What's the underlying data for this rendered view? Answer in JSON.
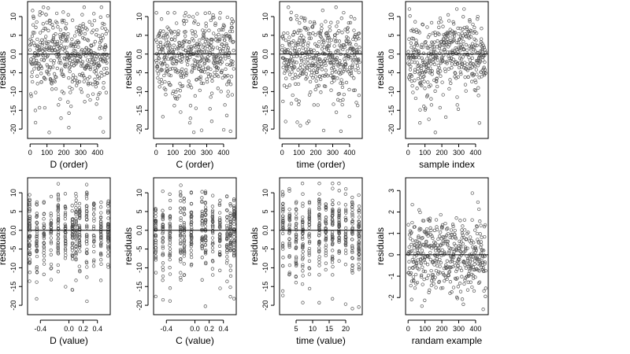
{
  "figure": {
    "title": "",
    "colors": {
      "points": "#555555",
      "axes": "#000000",
      "reference_line": "#000000"
    }
  },
  "chart_data": [
    {
      "id": "d-order",
      "type": "scatter",
      "xlabel": "D (order)",
      "ylabel": "residuals",
      "xlim": [
        -15,
        475
      ],
      "ylim": [
        -22.5,
        14
      ],
      "xticks": [
        0,
        100,
        200,
        300,
        400
      ],
      "xtick_labels": [
        "0",
        "100",
        "200",
        "300",
        "400"
      ],
      "yticks": [
        -20,
        -15,
        -10,
        -5,
        0,
        5,
        10
      ],
      "ytick_labels": [
        "-20",
        "-15",
        "-10",
        "-5",
        "0.0",
        "5",
        "10"
      ],
      "hline": 0,
      "grid": false,
      "legend": "none",
      "points_summary": {
        "n": 460,
        "x_range": [
          0,
          460
        ],
        "y_typical_range": [
          -10,
          10
        ],
        "y_min_approx": -21,
        "y_max_approx": 12.5,
        "pattern": "uniform"
      }
    },
    {
      "id": "c-order",
      "type": "scatter",
      "xlabel": "C (order)",
      "ylabel": "residuals",
      "xlim": [
        -15,
        475
      ],
      "ylim": [
        -22.5,
        14
      ],
      "xticks": [
        0,
        100,
        200,
        300,
        400
      ],
      "xtick_labels": [
        "0",
        "100",
        "200",
        "300",
        "400"
      ],
      "yticks": [
        -20,
        -15,
        -10,
        -5,
        0,
        5,
        10
      ],
      "ytick_labels": [
        "-20",
        "-15",
        "-10",
        "-5",
        "0.0",
        "5",
        "10"
      ],
      "hline": 0,
      "grid": false,
      "legend": "none",
      "points_summary": {
        "n": 460,
        "x_range": [
          0,
          460
        ],
        "y_typical_range": [
          -10,
          10
        ],
        "y_min_approx": -21,
        "y_max_approx": 11,
        "pattern": "uniform"
      }
    },
    {
      "id": "time-order",
      "type": "scatter",
      "xlabel": "time (order)",
      "ylabel": "residuals",
      "xlim": [
        -15,
        475
      ],
      "ylim": [
        -22.5,
        14
      ],
      "xticks": [
        0,
        100,
        200,
        300,
        400
      ],
      "xtick_labels": [
        "0",
        "100",
        "200",
        "300",
        "400"
      ],
      "yticks": [
        -20,
        -15,
        -10,
        -5,
        0,
        5,
        10
      ],
      "ytick_labels": [
        "-20",
        "-15",
        "-10",
        "-5",
        "0.0",
        "5",
        "10"
      ],
      "hline": 0,
      "grid": false,
      "legend": "none",
      "points_summary": {
        "n": 460,
        "x_range": [
          0,
          460
        ],
        "y_typical_range": [
          -10,
          10
        ],
        "y_min_approx": -21,
        "y_max_approx": 12.5,
        "pattern": "uniform"
      }
    },
    {
      "id": "sample-index",
      "type": "scatter",
      "xlabel": "sample index",
      "ylabel": "residuals",
      "xlim": [
        -15,
        475
      ],
      "ylim": [
        -22.5,
        14
      ],
      "xticks": [
        0,
        100,
        200,
        300,
        400
      ],
      "xtick_labels": [
        "0",
        "100",
        "200",
        "300",
        "400"
      ],
      "yticks": [
        -20,
        -15,
        -10,
        -5,
        0,
        5,
        10
      ],
      "ytick_labels": [
        "-20",
        "-15",
        "-10",
        "-5",
        "0.0",
        "5",
        "10"
      ],
      "hline": 0,
      "grid": false,
      "legend": "none",
      "points_summary": {
        "n": 460,
        "x_range": [
          0,
          460
        ],
        "y_typical_range": [
          -10,
          10
        ],
        "y_min_approx": -21,
        "y_max_approx": 12,
        "pattern": "blocked"
      }
    },
    {
      "id": "d-value",
      "type": "scatter",
      "xlabel": "D (value)",
      "ylabel": "residuals",
      "xlim": [
        -0.58,
        0.58
      ],
      "ylim": [
        -22.5,
        14
      ],
      "xticks": [
        -0.4,
        0,
        0.2,
        0.4
      ],
      "xtick_labels": [
        "-0.4",
        "0.0",
        "0.2",
        "0.4"
      ],
      "yticks": [
        -20,
        -15,
        -10,
        -5,
        0,
        5,
        10
      ],
      "ytick_labels": [
        "-20",
        "-15",
        "-10",
        "-5",
        "0.0",
        "5",
        "10"
      ],
      "hline": 0,
      "grid": false,
      "legend": "none",
      "points_summary": {
        "n": 460,
        "x_range": [
          -0.55,
          0.55
        ],
        "y_typical_range": [
          -10,
          10
        ],
        "y_min_approx": -21,
        "y_max_approx": 12.5,
        "pattern": "columns",
        "columns": [
          -0.55,
          -0.45,
          -0.35,
          -0.25,
          -0.15,
          -0.05,
          0.05,
          0.1,
          0.15,
          0.25,
          0.35,
          0.45,
          0.55
        ]
      }
    },
    {
      "id": "c-value",
      "type": "scatter",
      "xlabel": "C (value)",
      "ylabel": "residuals",
      "xlim": [
        -0.58,
        0.58
      ],
      "ylim": [
        -22.5,
        14
      ],
      "xticks": [
        -0.4,
        0,
        0.2,
        0.4
      ],
      "xtick_labels": [
        "-0.4",
        "0.0",
        "0.2",
        "0.4"
      ],
      "yticks": [
        -20,
        -15,
        -10,
        -5,
        0,
        5,
        10
      ],
      "ytick_labels": [
        "-20",
        "-15",
        "-10",
        "-5",
        "0.0",
        "5",
        "10"
      ],
      "hline": 0,
      "grid": false,
      "legend": "none",
      "points_summary": {
        "n": 460,
        "x_range": [
          -0.55,
          0.55
        ],
        "y_typical_range": [
          -10,
          10
        ],
        "y_min_approx": -21,
        "y_max_approx": 12,
        "pattern": "columns",
        "columns": [
          -0.55,
          -0.45,
          -0.35,
          -0.2,
          -0.15,
          -0.05,
          0.1,
          0.15,
          0.25,
          0.35,
          0.45,
          0.5,
          0.55
        ]
      }
    },
    {
      "id": "time-value",
      "type": "scatter",
      "xlabel": "time (value)",
      "ylabel": "residuals",
      "xlim": [
        0,
        25
      ],
      "ylim": [
        -22.5,
        14
      ],
      "xticks": [
        5,
        10,
        15,
        20
      ],
      "xtick_labels": [
        "5",
        "10",
        "15",
        "20"
      ],
      "yticks": [
        -20,
        -15,
        -10,
        -5,
        0,
        5,
        10
      ],
      "ytick_labels": [
        "-20",
        "-15",
        "-10",
        "-5",
        "0.0",
        "5",
        "10"
      ],
      "hline": 0,
      "grid": false,
      "legend": "none",
      "points_summary": {
        "n": 460,
        "x_range": [
          1,
          24
        ],
        "y_typical_range": [
          -10,
          10
        ],
        "y_min_approx": -21,
        "y_max_approx": 12.5,
        "pattern": "columns",
        "columns": [
          1,
          3,
          5,
          7,
          9,
          12,
          14,
          16,
          18,
          20,
          22,
          24
        ]
      }
    },
    {
      "id": "randam-example",
      "type": "scatter",
      "xlabel": "randam example",
      "ylabel": "residuals",
      "xlim": [
        -15,
        475
      ],
      "ylim": [
        -2.8,
        3.6
      ],
      "xticks": [
        0,
        100,
        200,
        300,
        400
      ],
      "xtick_labels": [
        "0",
        "100",
        "200",
        "300",
        "400"
      ],
      "yticks": [
        -2,
        -1,
        0,
        1,
        2,
        3
      ],
      "ytick_labels": [
        "-2",
        "-1",
        "0",
        "1",
        "2",
        "3"
      ],
      "hline": 0,
      "grid": false,
      "legend": "none",
      "points_summary": {
        "n": 460,
        "x_range": [
          0,
          460
        ],
        "y_typical_range": [
          -2.5,
          2.5
        ],
        "y_min_approx": -2.6,
        "y_max_approx": 3.3,
        "pattern": "normal"
      }
    }
  ]
}
